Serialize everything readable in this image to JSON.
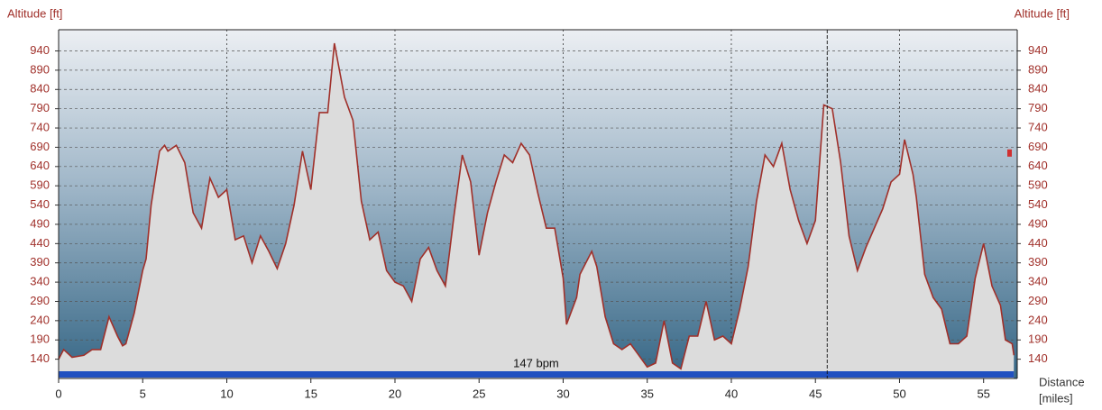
{
  "chart_data": {
    "type": "area",
    "y_label": "Altitude [ft]",
    "x_label": [
      "Distance",
      "[miles]"
    ],
    "annotation": "147 bpm",
    "line_color": "#a0302a",
    "fill_color": "#dcdcdc",
    "xlim": [
      0,
      57
    ],
    "ylim": [
      90,
      995
    ],
    "xticks": [
      0,
      5,
      10,
      15,
      20,
      25,
      30,
      35,
      40,
      45,
      50,
      55
    ],
    "yticks": [
      140,
      190,
      240,
      290,
      340,
      390,
      440,
      490,
      540,
      590,
      640,
      690,
      740,
      790,
      840,
      890,
      940
    ],
    "xgrid": [
      10,
      20,
      30,
      40,
      50
    ],
    "grid": true,
    "cursor_x": 45.7,
    "marker_y": 675,
    "x": [
      0,
      0.3,
      0.8,
      1.5,
      2,
      2.5,
      3,
      3.5,
      3.8,
      4,
      4.5,
      5,
      5.2,
      5.5,
      6,
      6.3,
      6.5,
      7,
      7.5,
      8,
      8.5,
      9,
      9.5,
      10,
      10.5,
      11,
      11.5,
      12,
      12.5,
      13,
      13.5,
      14,
      14.5,
      15,
      15.5,
      16,
      16.4,
      17,
      17.5,
      18,
      18.5,
      19,
      19.5,
      20,
      20.5,
      21,
      21.5,
      22,
      22.5,
      23,
      23.5,
      24,
      24.5,
      25,
      25.5,
      26,
      26.5,
      27,
      27.5,
      28,
      28.5,
      29,
      29.5,
      30,
      30.2,
      30.8,
      31,
      31.7,
      32,
      32.5,
      33,
      33.5,
      34,
      34.5,
      35,
      35.5,
      36,
      36.5,
      37,
      37.5,
      38,
      38.5,
      39,
      39.5,
      40,
      40.5,
      41,
      41.5,
      42,
      42.5,
      43,
      43.5,
      44,
      44.5,
      45,
      45.5,
      46,
      46.5,
      47,
      47.5,
      48,
      48.5,
      49,
      49.5,
      50,
      50.3,
      50.8,
      51,
      51.5,
      52,
      52.5,
      53,
      53.5,
      54,
      54.5,
      55,
      55.5,
      56,
      56.3,
      56.7,
      56.8
    ],
    "values": [
      140,
      165,
      145,
      150,
      165,
      165,
      250,
      200,
      175,
      180,
      260,
      370,
      400,
      540,
      680,
      695,
      680,
      695,
      650,
      520,
      480,
      610,
      560,
      580,
      450,
      460,
      390,
      460,
      420,
      375,
      440,
      540,
      680,
      580,
      780,
      780,
      960,
      820,
      760,
      550,
      450,
      470,
      370,
      340,
      330,
      290,
      400,
      430,
      370,
      330,
      510,
      670,
      600,
      410,
      520,
      600,
      670,
      650,
      700,
      670,
      570,
      480,
      480,
      350,
      230,
      300,
      360,
      420,
      380,
      250,
      180,
      165,
      180,
      150,
      120,
      130,
      240,
      130,
      115,
      200,
      200,
      290,
      190,
      200,
      180,
      270,
      380,
      550,
      670,
      640,
      700,
      580,
      500,
      440,
      500,
      800,
      790,
      650,
      460,
      370,
      430,
      480,
      530,
      600,
      620,
      710,
      620,
      560,
      360,
      300,
      270,
      180,
      180,
      200,
      350,
      440,
      330,
      280,
      190,
      180,
      150
    ]
  }
}
